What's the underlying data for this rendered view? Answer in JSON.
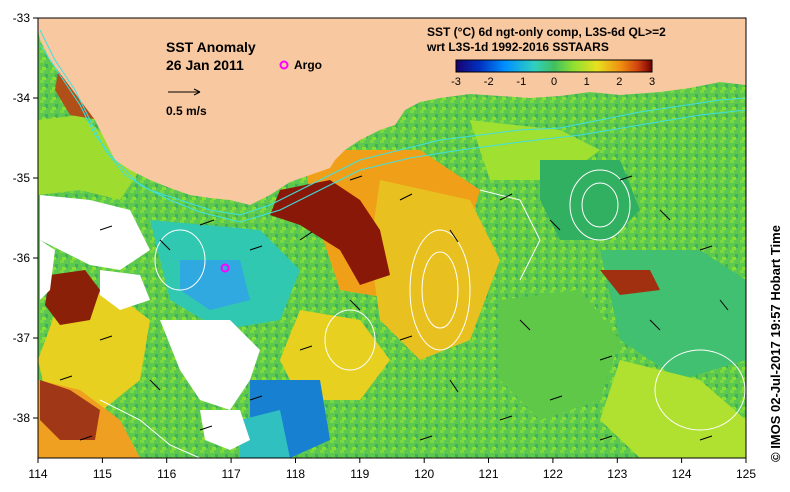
{
  "map": {
    "title": "SST Anomaly",
    "date": "26 Jan 2011",
    "argo_label": "Argo",
    "vector_scale_label": "0.5 m/s",
    "product_line1": "SST (°C) 6d ngt-only comp, L3S-6d QL>=2",
    "product_line2": "wrt L3S-1d 1992-2016 SSTAARS",
    "credit": "© IMOS 02-Jul-2017 19:57 Hobart Time",
    "colors": {
      "land": "#F8C8A0",
      "coast_contour": "#40E0E0",
      "argo_marker": "#FF00FF",
      "no_data": "#FFFFFF"
    }
  },
  "axes": {
    "x_ticks": [
      "114",
      "115",
      "116",
      "117",
      "118",
      "119",
      "120",
      "121",
      "122",
      "123",
      "124",
      "125"
    ],
    "y_ticks": [
      "-33",
      "-34",
      "-35",
      "-36",
      "-37",
      "-38"
    ]
  },
  "colorbar": {
    "ticks": [
      "-3",
      "-2",
      "-1",
      "0",
      "1",
      "2",
      "3"
    ],
    "colors": [
      "#1a0070",
      "#0030c0",
      "#0090ff",
      "#30d0c0",
      "#40c060",
      "#90e030",
      "#e8e020",
      "#f09010",
      "#d04010",
      "#700000"
    ]
  }
}
